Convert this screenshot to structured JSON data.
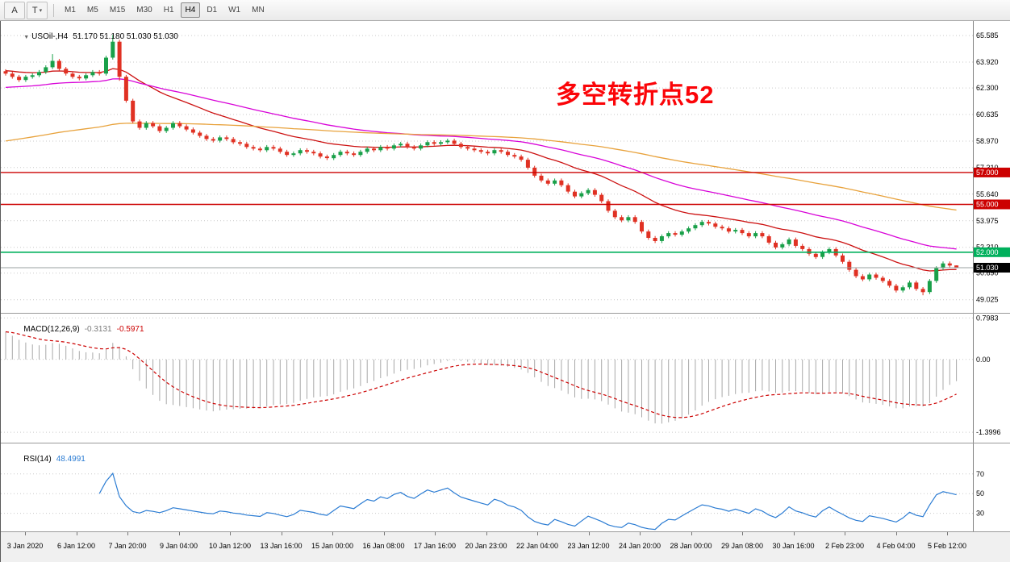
{
  "toolbar": {
    "tool_buttons": [
      {
        "glyph": "A"
      },
      {
        "glyph": "T",
        "dropdown": "▾"
      }
    ],
    "timeframes": [
      "M1",
      "M5",
      "M15",
      "M30",
      "H1",
      "H4",
      "D1",
      "W1",
      "MN"
    ],
    "active_timeframe": "H4"
  },
  "chart_header": {
    "collapse_icon": "▼",
    "symbol": "USOil-,H4",
    "ohlc": "51.170 51.180 51.030 51.030"
  },
  "annotation": {
    "text": "多空转折点52",
    "color": "#fb0408"
  },
  "indicators": {
    "macd": {
      "label": "MACD(12,26,9)",
      "value_main": "-0.3131",
      "value_signal": "-0.5971"
    },
    "rsi": {
      "label": "RSI(14)",
      "value": "48.4991"
    }
  },
  "time_axis": [
    "3 Jan 2020",
    "6 Jan 12:00",
    "7 Jan 20:00",
    "9 Jan 04:00",
    "10 Jan 12:00",
    "13 Jan 16:00",
    "15 Jan 00:00",
    "16 Jan 08:00",
    "17 Jan 16:00",
    "20 Jan 23:00",
    "22 Jan 04:00",
    "23 Jan 12:00",
    "24 Jan 20:00",
    "28 Jan 00:00",
    "29 Jan 08:00",
    "30 Jan 16:00",
    "2 Feb 23:00",
    "4 Feb 04:00",
    "5 Feb 12:00"
  ],
  "chart_data": {
    "type": "candlestick",
    "symbol": "USOil-",
    "timeframe": "H4",
    "last_bar": {
      "open": 51.17,
      "high": 51.18,
      "low": 51.03,
      "close": 51.03
    },
    "price_axis": [
      65.585,
      63.92,
      62.3,
      60.635,
      58.97,
      57.31,
      55.64,
      53.975,
      52.31,
      50.69,
      49.025
    ],
    "colors": {
      "up": "#19a049",
      "down": "#e03123",
      "grid": "#c9c9c9"
    },
    "levels": [
      {
        "price": 57.0,
        "label": "57.000",
        "color": "#cc0000"
      },
      {
        "price": 55.0,
        "label": "55.000",
        "color": "#cc0000"
      },
      {
        "price": 52.0,
        "label": "52.000",
        "color": "#00b05c"
      }
    ],
    "current_price": {
      "price": 51.03,
      "label": "51.030",
      "line_color": "#9aa0a0",
      "badge_color": "#000000"
    },
    "moving_averages": [
      {
        "period": 22,
        "color": "#cc1111",
        "seed": 63.4
      },
      {
        "period": 50,
        "color": "#d803d8",
        "seed": 62.3
      },
      {
        "period": 120,
        "color": "#e8a23c",
        "seed": 58.9
      }
    ],
    "macd": {
      "fast": 12,
      "slow": 26,
      "signal": 9,
      "fast_seed": 63.5,
      "slow_seed": 62.9,
      "axis_values": [
        0.7983,
        0,
        -1.3996
      ],
      "hist_color": "#a8a8a8",
      "signal_color": "#cc0000"
    },
    "rsi": {
      "period": 14,
      "axis_values": [
        70,
        50,
        30
      ],
      "line_color": "#2b7cd3"
    },
    "candles": [
      [
        63.35,
        63.47,
        63.08,
        63.2
      ],
      [
        63.2,
        63.32,
        62.88,
        63.0
      ],
      [
        63.0,
        63.12,
        62.68,
        62.8
      ],
      [
        62.8,
        63.12,
        62.68,
        63.0
      ],
      [
        63.0,
        63.22,
        62.88,
        63.1
      ],
      [
        63.1,
        63.42,
        62.98,
        63.3
      ],
      [
        63.3,
        63.72,
        63.18,
        63.6
      ],
      [
        63.6,
        64.42,
        63.48,
        64.0
      ],
      [
        64.0,
        64.12,
        63.38,
        63.5
      ],
      [
        63.5,
        63.62,
        63.08,
        63.2
      ],
      [
        63.2,
        63.32,
        62.88,
        63.0
      ],
      [
        63.0,
        63.12,
        62.78,
        62.9
      ],
      [
        62.9,
        63.22,
        62.78,
        63.1
      ],
      [
        63.1,
        63.42,
        62.98,
        63.3
      ],
      [
        63.3,
        63.42,
        63.08,
        63.2
      ],
      [
        63.2,
        64.32,
        63.08,
        64.2
      ],
      [
        64.2,
        65.62,
        64.08,
        65.2
      ],
      [
        65.2,
        65.32,
        62.75,
        63.0
      ],
      [
        63.0,
        63.12,
        61.38,
        61.5
      ],
      [
        61.5,
        61.62,
        60.08,
        60.2
      ],
      [
        60.2,
        60.32,
        59.68,
        59.8
      ],
      [
        59.8,
        60.22,
        59.68,
        60.1
      ],
      [
        60.1,
        60.22,
        59.78,
        59.9
      ],
      [
        59.9,
        60.02,
        59.48,
        59.6
      ],
      [
        59.6,
        59.92,
        59.48,
        59.8
      ],
      [
        59.8,
        60.22,
        59.68,
        60.1
      ],
      [
        60.1,
        60.22,
        59.78,
        59.9
      ],
      [
        59.9,
        60.02,
        59.58,
        59.7
      ],
      [
        59.7,
        59.82,
        59.38,
        59.5
      ],
      [
        59.5,
        59.62,
        59.18,
        59.3
      ],
      [
        59.3,
        59.42,
        58.98,
        59.1
      ],
      [
        59.1,
        59.22,
        58.88,
        59.0
      ],
      [
        59.0,
        59.32,
        58.88,
        59.2
      ],
      [
        59.2,
        59.32,
        58.98,
        59.1
      ],
      [
        59.1,
        59.22,
        58.78,
        58.9
      ],
      [
        58.9,
        59.02,
        58.68,
        58.8
      ],
      [
        58.8,
        58.92,
        58.48,
        58.6
      ],
      [
        58.6,
        58.72,
        58.38,
        58.5
      ],
      [
        58.5,
        58.62,
        58.28,
        58.4
      ],
      [
        58.4,
        58.72,
        58.28,
        58.6
      ],
      [
        58.6,
        58.72,
        58.38,
        58.5
      ],
      [
        58.5,
        58.62,
        58.18,
        58.3
      ],
      [
        58.3,
        58.42,
        57.98,
        58.1
      ],
      [
        58.1,
        58.32,
        57.98,
        58.2
      ],
      [
        58.2,
        58.52,
        58.08,
        58.4
      ],
      [
        58.4,
        58.52,
        58.18,
        58.3
      ],
      [
        58.3,
        58.42,
        58.08,
        58.2
      ],
      [
        58.2,
        58.32,
        57.88,
        58.0
      ],
      [
        58.0,
        58.12,
        57.78,
        57.9
      ],
      [
        57.9,
        58.22,
        57.78,
        58.1
      ],
      [
        58.1,
        58.42,
        57.98,
        58.3
      ],
      [
        58.3,
        58.42,
        58.08,
        58.2
      ],
      [
        58.2,
        58.32,
        57.98,
        58.1
      ],
      [
        58.1,
        58.42,
        57.98,
        58.3
      ],
      [
        58.3,
        58.62,
        58.18,
        58.5
      ],
      [
        58.5,
        58.62,
        58.28,
        58.4
      ],
      [
        58.4,
        58.72,
        58.28,
        58.6
      ],
      [
        58.6,
        58.72,
        58.38,
        58.5
      ],
      [
        58.5,
        58.82,
        58.38,
        58.7
      ],
      [
        58.7,
        58.92,
        58.58,
        58.8
      ],
      [
        58.8,
        58.92,
        58.48,
        58.6
      ],
      [
        58.6,
        58.72,
        58.38,
        58.5
      ],
      [
        58.5,
        58.82,
        58.38,
        58.7
      ],
      [
        58.7,
        59.02,
        58.58,
        58.9
      ],
      [
        58.9,
        59.02,
        58.68,
        58.8
      ],
      [
        58.8,
        59.02,
        58.68,
        58.9
      ],
      [
        58.9,
        59.12,
        58.78,
        59.0
      ],
      [
        59.0,
        59.12,
        58.68,
        58.8
      ],
      [
        58.8,
        58.92,
        58.48,
        58.6
      ],
      [
        58.6,
        58.72,
        58.38,
        58.5
      ],
      [
        58.5,
        58.62,
        58.28,
        58.4
      ],
      [
        58.4,
        58.52,
        58.18,
        58.3
      ],
      [
        58.3,
        58.42,
        58.08,
        58.2
      ],
      [
        58.2,
        58.52,
        58.08,
        58.4
      ],
      [
        58.4,
        58.52,
        58.18,
        58.3
      ],
      [
        58.3,
        58.42,
        57.98,
        58.1
      ],
      [
        58.1,
        58.22,
        57.88,
        58.0
      ],
      [
        58.0,
        58.12,
        57.68,
        57.8
      ],
      [
        57.8,
        57.92,
        57.18,
        57.3
      ],
      [
        57.3,
        57.42,
        56.68,
        56.8
      ],
      [
        56.8,
        56.92,
        56.38,
        56.5
      ],
      [
        56.5,
        56.62,
        56.18,
        56.3
      ],
      [
        56.3,
        56.62,
        56.18,
        56.5
      ],
      [
        56.5,
        56.62,
        56.08,
        56.2
      ],
      [
        56.2,
        56.32,
        55.68,
        55.8
      ],
      [
        55.8,
        55.92,
        55.38,
        55.5
      ],
      [
        55.5,
        55.82,
        55.38,
        55.7
      ],
      [
        55.7,
        56.02,
        55.58,
        55.9
      ],
      [
        55.9,
        56.02,
        55.48,
        55.6
      ],
      [
        55.6,
        55.72,
        55.08,
        55.2
      ],
      [
        55.2,
        55.32,
        54.48,
        54.6
      ],
      [
        54.6,
        54.72,
        54.08,
        54.2
      ],
      [
        54.2,
        54.32,
        53.88,
        54.0
      ],
      [
        54.0,
        54.32,
        53.88,
        54.2
      ],
      [
        54.2,
        54.32,
        53.78,
        53.9
      ],
      [
        53.9,
        54.02,
        53.18,
        53.3
      ],
      [
        53.3,
        53.42,
        52.78,
        52.9
      ],
      [
        52.9,
        53.02,
        52.58,
        52.7
      ],
      [
        52.7,
        53.12,
        52.58,
        53.0
      ],
      [
        53.0,
        53.32,
        52.88,
        53.2
      ],
      [
        53.2,
        53.32,
        52.98,
        53.1
      ],
      [
        53.1,
        53.42,
        52.98,
        53.3
      ],
      [
        53.3,
        53.62,
        53.18,
        53.5
      ],
      [
        53.5,
        53.82,
        53.38,
        53.7
      ],
      [
        53.7,
        54.02,
        53.58,
        53.9
      ],
      [
        53.9,
        54.02,
        53.68,
        53.8
      ],
      [
        53.8,
        53.92,
        53.48,
        53.6
      ],
      [
        53.6,
        53.72,
        53.38,
        53.5
      ],
      [
        53.5,
        53.62,
        53.18,
        53.3
      ],
      [
        53.3,
        53.52,
        53.18,
        53.4
      ],
      [
        53.4,
        53.52,
        53.08,
        53.2
      ],
      [
        53.2,
        53.32,
        52.88,
        53.0
      ],
      [
        53.0,
        53.32,
        52.88,
        53.2
      ],
      [
        53.2,
        53.32,
        52.88,
        53.0
      ],
      [
        53.0,
        53.12,
        52.48,
        52.6
      ],
      [
        52.6,
        52.72,
        52.18,
        52.3
      ],
      [
        52.3,
        52.62,
        52.18,
        52.5
      ],
      [
        52.5,
        52.92,
        52.38,
        52.8
      ],
      [
        52.8,
        52.92,
        52.28,
        52.4
      ],
      [
        52.4,
        52.52,
        52.08,
        52.2
      ],
      [
        52.2,
        52.32,
        51.78,
        51.9
      ],
      [
        51.9,
        52.02,
        51.58,
        51.7
      ],
      [
        51.7,
        52.12,
        51.58,
        52.0
      ],
      [
        52.0,
        52.32,
        51.88,
        52.2
      ],
      [
        52.2,
        52.32,
        51.68,
        51.8
      ],
      [
        51.8,
        51.92,
        51.28,
        51.4
      ],
      [
        51.4,
        51.52,
        50.78,
        50.9
      ],
      [
        50.9,
        51.02,
        50.38,
        50.5
      ],
      [
        50.5,
        50.62,
        50.18,
        50.3
      ],
      [
        50.3,
        50.72,
        50.18,
        50.6
      ],
      [
        50.6,
        50.72,
        50.28,
        50.4
      ],
      [
        50.4,
        50.52,
        50.08,
        50.2
      ],
      [
        50.2,
        50.32,
        49.78,
        49.9
      ],
      [
        49.9,
        50.02,
        49.48,
        49.6
      ],
      [
        49.6,
        49.92,
        49.48,
        49.8
      ],
      [
        49.8,
        50.22,
        49.68,
        50.1
      ],
      [
        50.1,
        50.22,
        49.58,
        49.7
      ],
      [
        49.7,
        49.82,
        49.3,
        49.5
      ],
      [
        49.5,
        50.32,
        49.38,
        50.2
      ],
      [
        50.2,
        51.12,
        50.08,
        51.0
      ],
      [
        51.0,
        51.42,
        50.88,
        51.3
      ],
      [
        51.3,
        51.42,
        51.05,
        51.17
      ],
      [
        51.17,
        51.18,
        51.03,
        51.03
      ]
    ]
  }
}
